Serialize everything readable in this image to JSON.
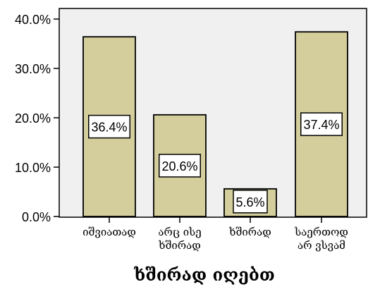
{
  "chart_data": {
    "type": "bar",
    "categories": [
      [
        "იშვიათად"
      ],
      [
        "არც ისე",
        "ხშირად"
      ],
      [
        "ხშირად"
      ],
      [
        "საერთოდ",
        "არ ვსვამ"
      ]
    ],
    "values": [
      36.4,
      20.6,
      5.6,
      37.4
    ],
    "data_labels": [
      "36.4%",
      "20.6%",
      "5.6%",
      "37.4%"
    ],
    "xlabel": "ხშირად იღებთ",
    "ylabel": "",
    "ylim": [
      0,
      42
    ],
    "y_ticks": [
      0,
      10,
      20,
      30,
      40
    ],
    "y_tick_labels": [
      "0.0%",
      "10.0%",
      "20.0%",
      "30.0%",
      "40.0%"
    ],
    "grid": false,
    "colors": {
      "bar_fill": "#d3ce9b",
      "bar_stroke": "#000000",
      "plot_background": "#f0f0f0",
      "label_box_fill": "#ffffff"
    }
  }
}
